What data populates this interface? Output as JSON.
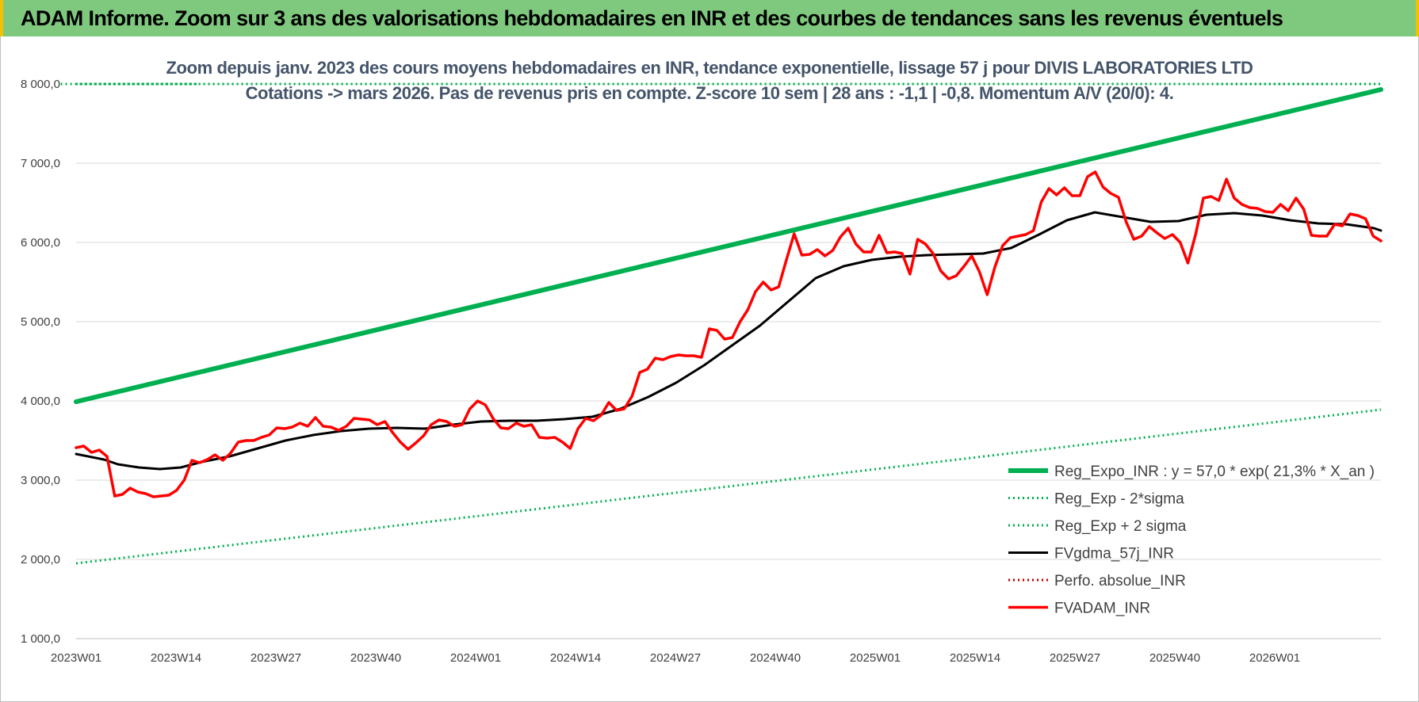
{
  "header": {
    "title": "ADAM Informe. Zoom sur 3 ans des valorisations hebdomadaires en INR et des courbes de tendances sans les revenus éventuels"
  },
  "chart_data": {
    "type": "line",
    "title_line1": "Zoom depuis janv. 2023 des cours moyens hebdomadaires en INR, tendance exponentielle, lissage 57 j pour DIVIS LABORATORIES LTD",
    "title_line2": "Cotations -> mars 2026. Pas de revenus pris en compte. Z-score 10 sem | 28 ans : -1,1 | -0,8. Momentum A/V (20/0): 4.",
    "x_tick_labels": [
      "2023W01",
      "2023W14",
      "2023W27",
      "2023W40",
      "2024W01",
      "2024W14",
      "2024W27",
      "2024W40",
      "2025W01",
      "2025W14",
      "2025W27",
      "2025W40",
      "2026W01"
    ],
    "y_tick_labels": [
      "1 000,0",
      "2 000,0",
      "3 000,0",
      "4 000,0",
      "5 000,0",
      "6 000,0",
      "7 000,0",
      "8 000,0"
    ],
    "ylim": [
      1000,
      8000
    ],
    "x_week_range": [
      0,
      163
    ],
    "legend_position": "lower-right",
    "grid": "horizontal",
    "series": [
      {
        "name": "Reg_Expo_INR : y = 57,0 * exp( 21,3% *  X_an )",
        "color": "#00b050",
        "style": "solid-thick",
        "points": [
          [
            0,
            3990
          ],
          [
            163,
            7930
          ]
        ]
      },
      {
        "name": "Reg_Exp - 2*sigma",
        "color": "#00b050",
        "style": "dotted",
        "points": [
          [
            0,
            1950
          ],
          [
            163,
            3890
          ]
        ]
      },
      {
        "name": "Reg_Exp + 2 sigma",
        "color": "#00b050",
        "style": "dotted",
        "points": [
          [
            -2,
            8000
          ],
          [
            11,
            8000
          ],
          [
            143,
            8000
          ],
          [
            163,
            8000
          ]
        ]
      },
      {
        "name": "FVgdma_57j_INR",
        "color": "#000000",
        "style": "solid",
        "points": [
          [
            0,
            3330
          ],
          [
            4,
            3260
          ],
          [
            6,
            3200
          ],
          [
            9,
            3160
          ],
          [
            12,
            3140
          ],
          [
            15,
            3160
          ],
          [
            18,
            3230
          ],
          [
            22,
            3300
          ],
          [
            26,
            3400
          ],
          [
            30,
            3500
          ],
          [
            34,
            3570
          ],
          [
            38,
            3620
          ],
          [
            42,
            3650
          ],
          [
            46,
            3660
          ],
          [
            50,
            3650
          ],
          [
            54,
            3700
          ],
          [
            58,
            3740
          ],
          [
            62,
            3750
          ],
          [
            66,
            3750
          ],
          [
            70,
            3770
          ],
          [
            74,
            3800
          ],
          [
            78,
            3900
          ],
          [
            82,
            4050
          ],
          [
            86,
            4230
          ],
          [
            90,
            4450
          ],
          [
            94,
            4700
          ],
          [
            98,
            4950
          ],
          [
            102,
            5250
          ],
          [
            106,
            5550
          ],
          [
            110,
            5700
          ],
          [
            114,
            5780
          ],
          [
            118,
            5820
          ],
          [
            122,
            5840
          ],
          [
            126,
            5850
          ],
          [
            130,
            5860
          ],
          [
            134,
            5930
          ],
          [
            138,
            6100
          ],
          [
            142,
            6280
          ],
          [
            146,
            6380
          ],
          [
            150,
            6320
          ],
          [
            154,
            6260
          ],
          [
            158,
            6270
          ],
          [
            162,
            6350
          ],
          [
            166,
            6370
          ],
          [
            170,
            6340
          ],
          [
            174,
            6280
          ],
          [
            178,
            6240
          ],
          [
            182,
            6230
          ],
          [
            186,
            6180
          ],
          [
            187,
            6150
          ]
        ]
      },
      {
        "name": "Perfo. absolue_INR",
        "color": "#c00000",
        "style": "dotted",
        "points": []
      },
      {
        "name": "FVADAM_INR",
        "color": "#ff0000",
        "style": "solid-thick",
        "points": [
          [
            0,
            3410
          ],
          [
            1,
            3430
          ],
          [
            2,
            3350
          ],
          [
            3,
            3380
          ],
          [
            4,
            3300
          ],
          [
            5,
            2800
          ],
          [
            6,
            2820
          ],
          [
            7,
            2900
          ],
          [
            8,
            2850
          ],
          [
            9,
            2830
          ],
          [
            10,
            2790
          ],
          [
            11,
            2800
          ],
          [
            12,
            2810
          ],
          [
            13,
            2870
          ],
          [
            14,
            3000
          ],
          [
            15,
            3250
          ],
          [
            16,
            3220
          ],
          [
            17,
            3260
          ],
          [
            18,
            3320
          ],
          [
            19,
            3250
          ],
          [
            20,
            3340
          ],
          [
            21,
            3480
          ],
          [
            22,
            3500
          ],
          [
            23,
            3500
          ],
          [
            24,
            3540
          ],
          [
            25,
            3570
          ],
          [
            26,
            3660
          ],
          [
            27,
            3650
          ],
          [
            28,
            3670
          ],
          [
            29,
            3720
          ],
          [
            30,
            3680
          ],
          [
            31,
            3790
          ],
          [
            32,
            3680
          ],
          [
            33,
            3670
          ],
          [
            34,
            3630
          ],
          [
            35,
            3680
          ],
          [
            36,
            3780
          ],
          [
            37,
            3770
          ],
          [
            38,
            3760
          ],
          [
            39,
            3700
          ],
          [
            40,
            3740
          ],
          [
            41,
            3600
          ],
          [
            42,
            3480
          ],
          [
            43,
            3390
          ],
          [
            44,
            3470
          ],
          [
            45,
            3560
          ],
          [
            46,
            3700
          ],
          [
            47,
            3760
          ],
          [
            48,
            3740
          ],
          [
            49,
            3680
          ],
          [
            50,
            3700
          ],
          [
            51,
            3900
          ],
          [
            52,
            4000
          ],
          [
            53,
            3950
          ],
          [
            54,
            3780
          ],
          [
            55,
            3660
          ],
          [
            56,
            3650
          ],
          [
            57,
            3720
          ],
          [
            58,
            3680
          ],
          [
            59,
            3700
          ],
          [
            60,
            3540
          ],
          [
            61,
            3530
          ],
          [
            62,
            3540
          ],
          [
            63,
            3480
          ],
          [
            64,
            3400
          ],
          [
            65,
            3650
          ],
          [
            66,
            3780
          ],
          [
            67,
            3750
          ],
          [
            68,
            3820
          ],
          [
            69,
            3980
          ],
          [
            70,
            3880
          ],
          [
            71,
            3900
          ],
          [
            72,
            4060
          ],
          [
            73,
            4360
          ],
          [
            74,
            4400
          ],
          [
            75,
            4540
          ],
          [
            76,
            4520
          ],
          [
            77,
            4560
          ],
          [
            78,
            4580
          ],
          [
            79,
            4570
          ],
          [
            80,
            4570
          ],
          [
            81,
            4550
          ],
          [
            82,
            4910
          ],
          [
            83,
            4890
          ],
          [
            84,
            4780
          ],
          [
            85,
            4800
          ],
          [
            86,
            5000
          ],
          [
            87,
            5150
          ],
          [
            88,
            5380
          ],
          [
            89,
            5500
          ],
          [
            90,
            5400
          ],
          [
            91,
            5440
          ],
          [
            92,
            5780
          ],
          [
            93,
            6110
          ],
          [
            94,
            5840
          ],
          [
            95,
            5850
          ],
          [
            96,
            5910
          ],
          [
            97,
            5830
          ],
          [
            98,
            5900
          ],
          [
            99,
            6070
          ],
          [
            100,
            6180
          ],
          [
            101,
            5980
          ],
          [
            102,
            5880
          ],
          [
            103,
            5880
          ],
          [
            104,
            6090
          ],
          [
            105,
            5870
          ],
          [
            106,
            5880
          ],
          [
            107,
            5860
          ],
          [
            108,
            5600
          ],
          [
            109,
            6040
          ],
          [
            110,
            5980
          ],
          [
            111,
            5860
          ],
          [
            112,
            5640
          ],
          [
            113,
            5540
          ],
          [
            114,
            5580
          ],
          [
            115,
            5700
          ],
          [
            116,
            5830
          ],
          [
            117,
            5630
          ],
          [
            118,
            5340
          ],
          [
            119,
            5690
          ],
          [
            120,
            5960
          ],
          [
            121,
            6060
          ],
          [
            122,
            6080
          ],
          [
            123,
            6100
          ],
          [
            124,
            6150
          ],
          [
            125,
            6510
          ],
          [
            126,
            6680
          ],
          [
            127,
            6600
          ],
          [
            128,
            6690
          ],
          [
            129,
            6590
          ],
          [
            130,
            6590
          ],
          [
            131,
            6830
          ],
          [
            132,
            6890
          ],
          [
            133,
            6700
          ],
          [
            134,
            6620
          ],
          [
            135,
            6570
          ],
          [
            136,
            6260
          ],
          [
            137,
            6040
          ],
          [
            138,
            6080
          ],
          [
            139,
            6200
          ],
          [
            140,
            6120
          ],
          [
            141,
            6050
          ],
          [
            142,
            6100
          ],
          [
            143,
            6000
          ],
          [
            144,
            5740
          ],
          [
            145,
            6100
          ],
          [
            146,
            6560
          ],
          [
            147,
            6580
          ],
          [
            148,
            6530
          ],
          [
            149,
            6800
          ],
          [
            150,
            6560
          ],
          [
            151,
            6480
          ],
          [
            152,
            6440
          ],
          [
            153,
            6430
          ],
          [
            154,
            6390
          ],
          [
            155,
            6380
          ],
          [
            156,
            6480
          ],
          [
            157,
            6400
          ],
          [
            158,
            6560
          ],
          [
            159,
            6420
          ],
          [
            160,
            6090
          ],
          [
            161,
            6080
          ],
          [
            162,
            6080
          ],
          [
            163,
            6230
          ],
          [
            164,
            6210
          ],
          [
            165,
            6360
          ],
          [
            166,
            6340
          ],
          [
            167,
            6300
          ],
          [
            168,
            6080
          ],
          [
            169,
            6020
          ]
        ]
      }
    ]
  }
}
